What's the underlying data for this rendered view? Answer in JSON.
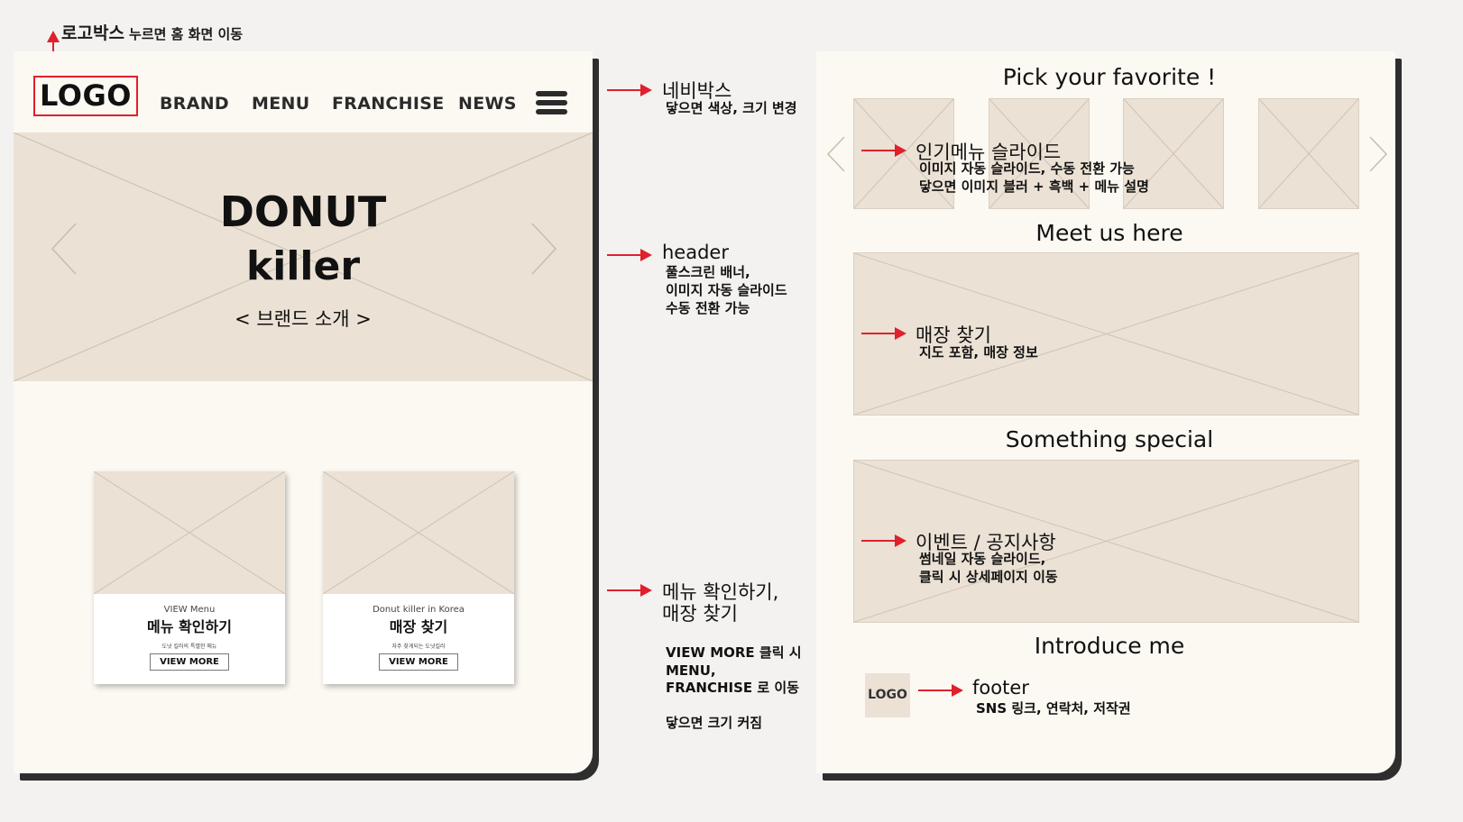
{
  "top_annotation": {
    "title": "로고박스",
    "sub": "누르면 홈 화면 이동"
  },
  "left_panel": {
    "logo": "LOGO",
    "nav": [
      "BRAND",
      "MENU",
      "FRANCHISE",
      "NEWS"
    ],
    "hero": {
      "line1": "DONUT",
      "line2": "killer",
      "sub": "< 브랜드 소개 >"
    },
    "cards": [
      {
        "small": "VIEW Menu",
        "title": "메뉴 확인하기",
        "desc": "도넛 킬러의 특별한 메뉴",
        "button": "VIEW MORE"
      },
      {
        "small": "Donut killer in Korea",
        "title": "매장 찾기",
        "desc": "자주 찾게되는 도넛킬러",
        "button": "VIEW MORE"
      }
    ]
  },
  "middle_annotations": {
    "nav": {
      "title": "네비박스",
      "lines": [
        "닿으면 색상, 크기 변경"
      ]
    },
    "header": {
      "title": "header",
      "lines": [
        "풀스크린 배너,",
        "이미지 자동 슬라이드",
        "수동 전환 가능"
      ]
    },
    "menu": {
      "title_lines": [
        "메뉴 확인하기,",
        "매장 찾기"
      ],
      "lines": [
        "VIEW MORE 클릭 시",
        "MENU,",
        "FRANCHISE 로 이동",
        "",
        "닿으면 크기 커짐"
      ]
    }
  },
  "right_panel": {
    "sections": [
      {
        "title": "Pick your favorite !",
        "note_title": "인기메뉴 슬라이드",
        "note_lines": [
          "이미지 자동 슬라이드, 수동 전환 가능",
          "닿으면 이미지 블러 + 흑백 + 메뉴 설명"
        ]
      },
      {
        "title": "Meet us here",
        "note_title": "매장 찾기",
        "note_lines": [
          "지도 포함, 매장 정보"
        ]
      },
      {
        "title": "Something special",
        "note_title": "이벤트 / 공지사항",
        "note_lines": [
          "썸네일 자동 슬라이드,",
          "클릭 시 상세페이지 이동"
        ]
      },
      {
        "title": "Introduce me",
        "note_title": "footer",
        "note_lines": [
          "SNS 링크, 연락처, 저작권"
        ]
      }
    ],
    "footer_logo": "LOGO"
  },
  "colors": {
    "panel": "#fcf9f2",
    "placeholder": "#ebe1d5",
    "accent_red": "#e0202c"
  }
}
